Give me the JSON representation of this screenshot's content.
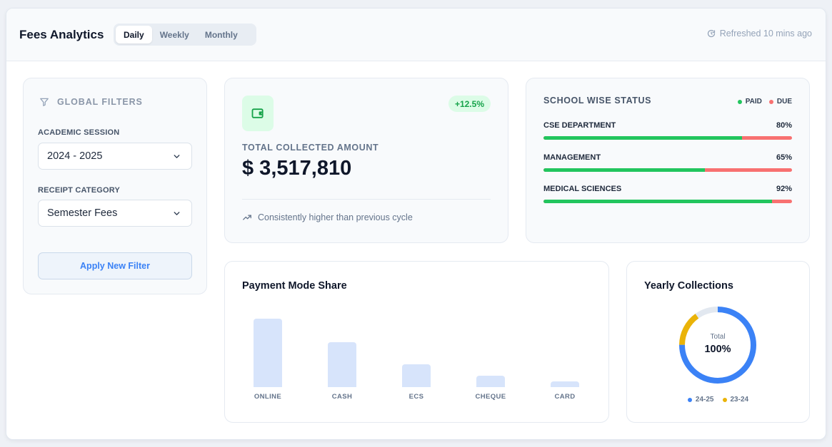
{
  "header": {
    "title": "Fees Analytics",
    "tabs": [
      {
        "label": "Daily",
        "active": true
      },
      {
        "label": "Weekly",
        "active": false
      },
      {
        "label": "Monthly",
        "active": false
      }
    ],
    "refresh_text": "Refreshed 10 mins ago",
    "refresh_icon": "refresh-icon"
  },
  "filters": {
    "title": "GLOBAL FILTERS",
    "title_icon": "filter-icon",
    "session_label": "ACADEMIC SESSION",
    "session_value": "2024 - 2025",
    "category_label": "RECEIPT CATEGORY",
    "category_value": "Semester Fees",
    "apply_label": "Apply New Filter"
  },
  "total": {
    "icon": "wallet-icon",
    "badge": "+12.5%",
    "label": "TOTAL COLLECTED AMOUNT",
    "value": "$ 3,517,810",
    "note": "Consistently higher than previous cycle",
    "note_icon": "trending-up-icon"
  },
  "school_status": {
    "title": "SCHOOL WISE STATUS",
    "legend": [
      {
        "label": "PAID",
        "color": "#22c55e"
      },
      {
        "label": "DUE",
        "color": "#f87171"
      }
    ],
    "rows": [
      {
        "name": "CSE DEPARTMENT",
        "percent_text": "80%",
        "paid": 0.8
      },
      {
        "name": "MANAGEMENT",
        "percent_text": "65%",
        "paid": 0.65
      },
      {
        "name": "MEDICAL SCIENCES",
        "percent_text": "92%",
        "paid": 0.92
      }
    ]
  },
  "payment": {
    "title": "Payment Mode Share"
  },
  "yearly": {
    "title": "Yearly Collections",
    "center_small": "Total",
    "center_big": "100%",
    "legend": [
      {
        "label": "24-25",
        "color": "#3b82f6"
      },
      {
        "label": "23-24",
        "color": "#eab308"
      }
    ]
  },
  "chart_data": [
    {
      "type": "bar",
      "title": "Payment Mode Share",
      "categories": [
        "ONLINE",
        "CASH",
        "ECS",
        "CHEQUE",
        "CARD"
      ],
      "values": [
        100,
        66,
        33,
        17,
        8
      ],
      "color": "#d7e4fb"
    },
    {
      "type": "pie",
      "title": "Yearly Collections",
      "categories": [
        "24-25",
        "23-24",
        "Remaining"
      ],
      "values": [
        75,
        15,
        10
      ],
      "colors": [
        "#3b82f6",
        "#eab308",
        "#e2e8f0"
      ]
    }
  ]
}
